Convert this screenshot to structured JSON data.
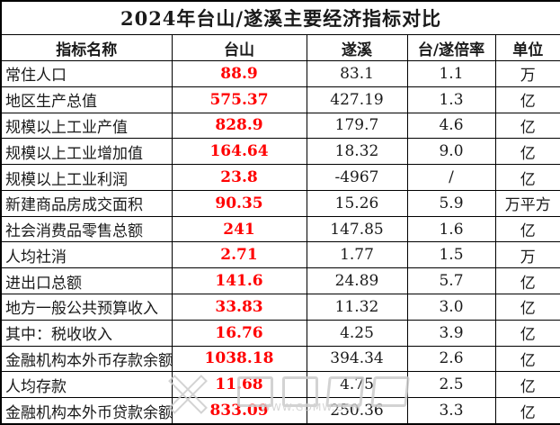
{
  "chart_data": {
    "type": "table",
    "title": "2024年台山/遂溪主要经济指标对比",
    "columns": [
      "指标名称",
      "台山",
      "遂溪",
      "台/遂倍率",
      "单位"
    ],
    "rows": [
      [
        "常住人口",
        "88.9",
        "83.1",
        "1.1",
        "万"
      ],
      [
        "地区生产总值",
        "575.37",
        "427.19",
        "1.3",
        "亿"
      ],
      [
        "规模以上工业产值",
        "828.9",
        "179.7",
        "4.6",
        "亿"
      ],
      [
        "规模以上工业增加值",
        "164.64",
        "18.32",
        "9.0",
        "亿"
      ],
      [
        "规模以上工业利润",
        "23.8",
        "-4967",
        "/",
        "亿"
      ],
      [
        "新建商品房成交面积",
        "90.35",
        "15.26",
        "5.9",
        "万平方"
      ],
      [
        "社会消费品零售总额",
        "241",
        "147.85",
        "1.6",
        "亿"
      ],
      [
        "人均社消",
        "2.71",
        "1.77",
        "1.5",
        "万"
      ],
      [
        "进出口总额",
        "141.6",
        "24.89",
        "5.7",
        "亿"
      ],
      [
        "地方一般公共预算收入",
        "33.83",
        "11.32",
        "3.0",
        "亿"
      ],
      [
        "其中：税收收入",
        "16.76",
        "4.25",
        "3.9",
        "亿"
      ],
      [
        "金融机构本外币存款余额",
        "1038.18",
        "394.34",
        "2.6",
        "亿"
      ],
      [
        "人均存款",
        "11.68",
        "4.75",
        "2.5",
        "亿"
      ],
      [
        "金融机构本外币贷款余额",
        "833.09",
        "250.36",
        "3.3",
        "亿"
      ]
    ],
    "highlighted_column": "台山",
    "layout": "bordered grid, title row spanning all columns, Taishan values red bold"
  },
  "colors": {
    "taishan_value": "#ff0000",
    "text": "#1a1a1a",
    "border": "#000000",
    "watermark": "#cccccc"
  },
  "watermark": {
    "url_text": "WWW.GDMW.COM"
  }
}
